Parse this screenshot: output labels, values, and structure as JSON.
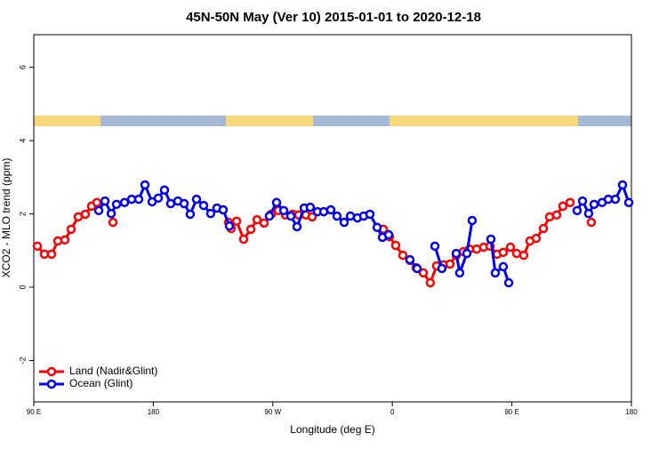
{
  "chart_data": {
    "type": "line",
    "title": "45N-50N May (Ver 10)   2015-01-01 to 2020-12-18",
    "xlabel": "Longitude (deg E)",
    "ylabel": "XCO2 - MLO trend (ppm)",
    "xlim": [
      90,
      540
    ],
    "ylim": [
      -3.13,
      6.89
    ],
    "xticks": [
      {
        "value": 90,
        "label": "90 E"
      },
      180,
      {
        "value": 270,
        "label": "90 W"
      },
      {
        "value": 360,
        "label": "0"
      },
      {
        "value": 450,
        "label": "90 E"
      },
      {
        "value": 540,
        "label": "180"
      }
    ],
    "yticks": [
      -2,
      0,
      2,
      4,
      6
    ],
    "grid": false,
    "legend": "bottom-left",
    "series": [
      {
        "name": "Land (Nadir&Glint)",
        "color": "#ff0000",
        "x": [
          92.7,
          98.0,
          103.4,
          108.1,
          113.4,
          118.1,
          123.5,
          128.8,
          133.5,
          137.5,
          null,
          149.6,
          null,
          236.6,
          238.6,
          242.7,
          248.0,
          253.4,
          258.1,
          263.4,
          268.8,
          274.1,
          279.5,
          284.9,
          289.5,
          294.9,
          299.6,
          null,
          353.2,
          357.8,
          362.5,
          367.9,
          373.2,
          377.9,
          383.3,
          388.6,
          393.3,
          398.7,
          403.4,
          408.1,
          413.4,
          418.1,
          423.5,
          428.8,
          433.5,
          438.9,
          443.5,
          448.9,
          453.6,
          458.9,
          463.6,
          468.3,
          473.7,
          478.4,
          483.7,
          488.4,
          493.8,
          null,
          509.8
        ],
        "values": [
          1.12,
          0.9,
          0.9,
          1.26,
          1.29,
          1.58,
          1.92,
          1.99,
          2.21,
          2.31,
          null,
          1.77,
          null,
          1.77,
          1.6,
          1.8,
          1.31,
          1.58,
          1.84,
          1.75,
          1.99,
          2.09,
          1.97,
          1.99,
          1.97,
          1.97,
          1.92,
          null,
          1.58,
          1.38,
          1.14,
          0.87,
          0.73,
          0.53,
          0.39,
          0.12,
          0.58,
          0.61,
          0.63,
          0.87,
          0.97,
          1.04,
          1.04,
          1.09,
          1.12,
          0.9,
          0.95,
          1.09,
          0.92,
          0.87,
          1.26,
          1.33,
          1.6,
          1.92,
          1.97,
          2.21,
          2.31,
          null,
          1.77
        ]
      },
      {
        "name": "Ocean (Glint)",
        "color": "#0000ee",
        "x": [
          138.9,
          143.6,
          148.3,
          152.3,
          158.3,
          163.7,
          169.0,
          173.7,
          179.1,
          183.7,
          188.4,
          193.1,
          198.5,
          203.2,
          207.8,
          212.5,
          217.9,
          223.2,
          227.9,
          232.6,
          237.3,
          null,
          267.4,
          272.8,
          278.2,
          283.5,
          288.2,
          293.6,
          298.2,
          303.6,
          308.3,
          313.6,
          318.3,
          323.7,
          328.4,
          333.7,
          338.4,
          343.1,
          348.5,
          352.5,
          357.2,
          null,
          373.2,
          378.6,
          null,
          392.0,
          397.3,
          null,
          408.1,
          410.7,
          416.1,
          420.1,
          null,
          434.2,
          437.5,
          443.5,
          447.6,
          null,
          499.1,
          503.2,
          507.8,
          511.9,
          517.9,
          522.6,
          527.9,
          533.3,
          538.0
        ],
        "values": [
          2.09,
          2.35,
          2.01,
          2.26,
          2.31,
          2.4,
          2.4,
          2.79,
          2.33,
          2.43,
          2.65,
          2.28,
          2.35,
          2.28,
          1.99,
          2.4,
          2.23,
          2.01,
          2.16,
          2.11,
          1.67,
          null,
          1.94,
          2.31,
          2.09,
          1.94,
          1.65,
          2.16,
          2.18,
          2.06,
          2.06,
          2.11,
          1.94,
          1.77,
          1.94,
          1.89,
          1.94,
          1.99,
          1.63,
          1.36,
          1.43,
          null,
          0.75,
          0.51,
          null,
          1.12,
          0.51,
          null,
          0.92,
          0.39,
          0.92,
          1.82,
          null,
          1.31,
          0.39,
          0.56,
          0.12,
          null,
          2.09,
          2.35,
          2.01,
          2.26,
          2.31,
          2.4,
          2.4,
          2.79,
          2.31
        ]
      }
    ]
  }
}
